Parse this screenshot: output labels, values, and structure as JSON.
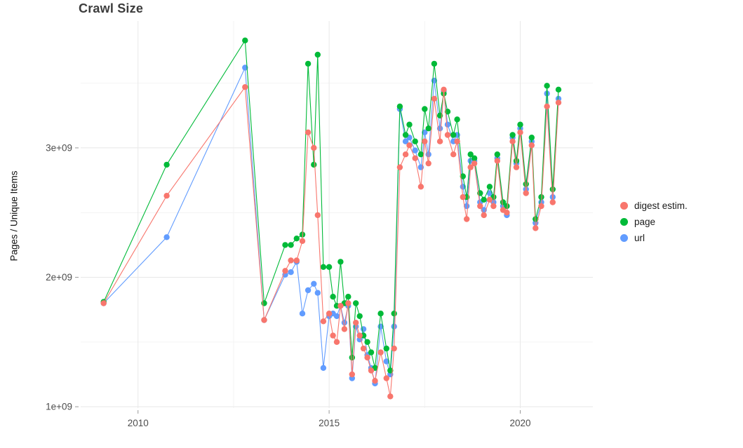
{
  "chart_data": {
    "type": "line",
    "title": "Crawl Size",
    "xlabel": "",
    "ylabel": "Pages / Unique Items",
    "legend_position": "right",
    "grid": true,
    "values_scale": "1e9 (values listed in billions)",
    "xlim": [
      2008.5,
      2021.9
    ],
    "ylim": [
      0.99,
      3.98
    ],
    "x_ticks": [
      2010,
      2015,
      2020
    ],
    "x_tick_labels": [
      "2010",
      "2015",
      "2020"
    ],
    "x_minor": [
      2012.5,
      2017.5
    ],
    "y_ticks": [
      1,
      2,
      3
    ],
    "y_tick_labels": [
      "1e+09",
      "2e+09",
      "3e+09"
    ],
    "y_minor": [
      1.5,
      2.5,
      3.5
    ],
    "style": {
      "grid_major": "#e8e8e8",
      "grid_minor": "#f4f4f4",
      "tick_color": "#999999",
      "tick_label_color": "#4d4d4d",
      "title_color": "#3d3d3d",
      "background": "#ffffff"
    },
    "x": [
      2009.1,
      2010.75,
      2012.8,
      2013.3,
      2013.85,
      2014.0,
      2014.15,
      2014.3,
      2014.45,
      2014.6,
      2014.7,
      2014.85,
      2015.0,
      2015.1,
      2015.2,
      2015.3,
      2015.4,
      2015.5,
      2015.6,
      2015.7,
      2015.8,
      2015.9,
      2016.0,
      2016.1,
      2016.2,
      2016.35,
      2016.5,
      2016.6,
      2016.7,
      2016.85,
      2017.0,
      2017.1,
      2017.25,
      2017.4,
      2017.5,
      2017.6,
      2017.75,
      2017.9,
      2018.0,
      2018.1,
      2018.25,
      2018.35,
      2018.5,
      2018.6,
      2018.7,
      2018.8,
      2018.95,
      2019.05,
      2019.2,
      2019.3,
      2019.4,
      2019.55,
      2019.65,
      2019.8,
      2019.9,
      2020.0,
      2020.15,
      2020.3,
      2020.4,
      2020.55,
      2020.7,
      2020.85,
      2021.0
    ],
    "series": [
      {
        "name": "digest estim.",
        "color": "#F8766D",
        "values": [
          1.8,
          2.63,
          3.47,
          1.67,
          2.05,
          2.13,
          2.13,
          2.28,
          3.12,
          3.0,
          2.48,
          1.66,
          1.72,
          1.55,
          1.5,
          1.78,
          1.6,
          1.8,
          1.25,
          1.65,
          1.55,
          1.45,
          1.38,
          1.28,
          1.2,
          1.42,
          1.22,
          1.08,
          1.45,
          2.85,
          2.95,
          3.02,
          2.92,
          2.7,
          3.05,
          2.88,
          3.38,
          3.05,
          3.45,
          3.1,
          2.95,
          3.05,
          2.62,
          2.45,
          2.85,
          2.88,
          2.55,
          2.48,
          2.6,
          2.55,
          2.9,
          2.52,
          2.5,
          3.05,
          2.85,
          3.12,
          2.65,
          3.02,
          2.38,
          2.55,
          3.32,
          2.58,
          3.35
        ]
      },
      {
        "name": "page",
        "color": "#00BA38",
        "values": [
          1.81,
          2.87,
          3.83,
          1.8,
          2.25,
          2.25,
          2.3,
          2.33,
          3.65,
          2.87,
          3.72,
          2.08,
          2.08,
          1.85,
          1.78,
          2.12,
          1.8,
          1.85,
          1.38,
          1.8,
          1.7,
          1.55,
          1.5,
          1.42,
          1.3,
          1.72,
          1.45,
          1.28,
          1.72,
          3.32,
          3.1,
          3.18,
          3.05,
          2.95,
          3.3,
          3.15,
          3.65,
          3.25,
          3.42,
          3.28,
          3.1,
          3.22,
          2.78,
          2.62,
          2.95,
          2.92,
          2.65,
          2.6,
          2.7,
          2.62,
          2.95,
          2.58,
          2.55,
          3.1,
          2.9,
          3.18,
          2.72,
          3.08,
          2.45,
          2.62,
          3.48,
          2.68,
          3.45
        ]
      },
      {
        "name": "url",
        "color": "#619CFF",
        "values": [
          1.8,
          2.31,
          3.62,
          1.67,
          2.02,
          2.04,
          2.12,
          1.72,
          1.9,
          1.95,
          1.88,
          1.3,
          1.7,
          1.72,
          1.7,
          1.78,
          1.65,
          1.78,
          1.22,
          1.62,
          1.52,
          1.6,
          1.4,
          1.3,
          1.18,
          1.62,
          1.35,
          1.25,
          1.62,
          3.3,
          3.05,
          3.08,
          2.98,
          2.85,
          3.12,
          2.95,
          3.52,
          3.15,
          3.44,
          3.18,
          3.05,
          3.1,
          2.7,
          2.55,
          2.9,
          2.9,
          2.58,
          2.52,
          2.65,
          2.58,
          2.92,
          2.55,
          2.48,
          3.08,
          2.88,
          3.15,
          2.68,
          3.05,
          2.42,
          2.58,
          3.42,
          2.62,
          3.38
        ]
      }
    ]
  }
}
